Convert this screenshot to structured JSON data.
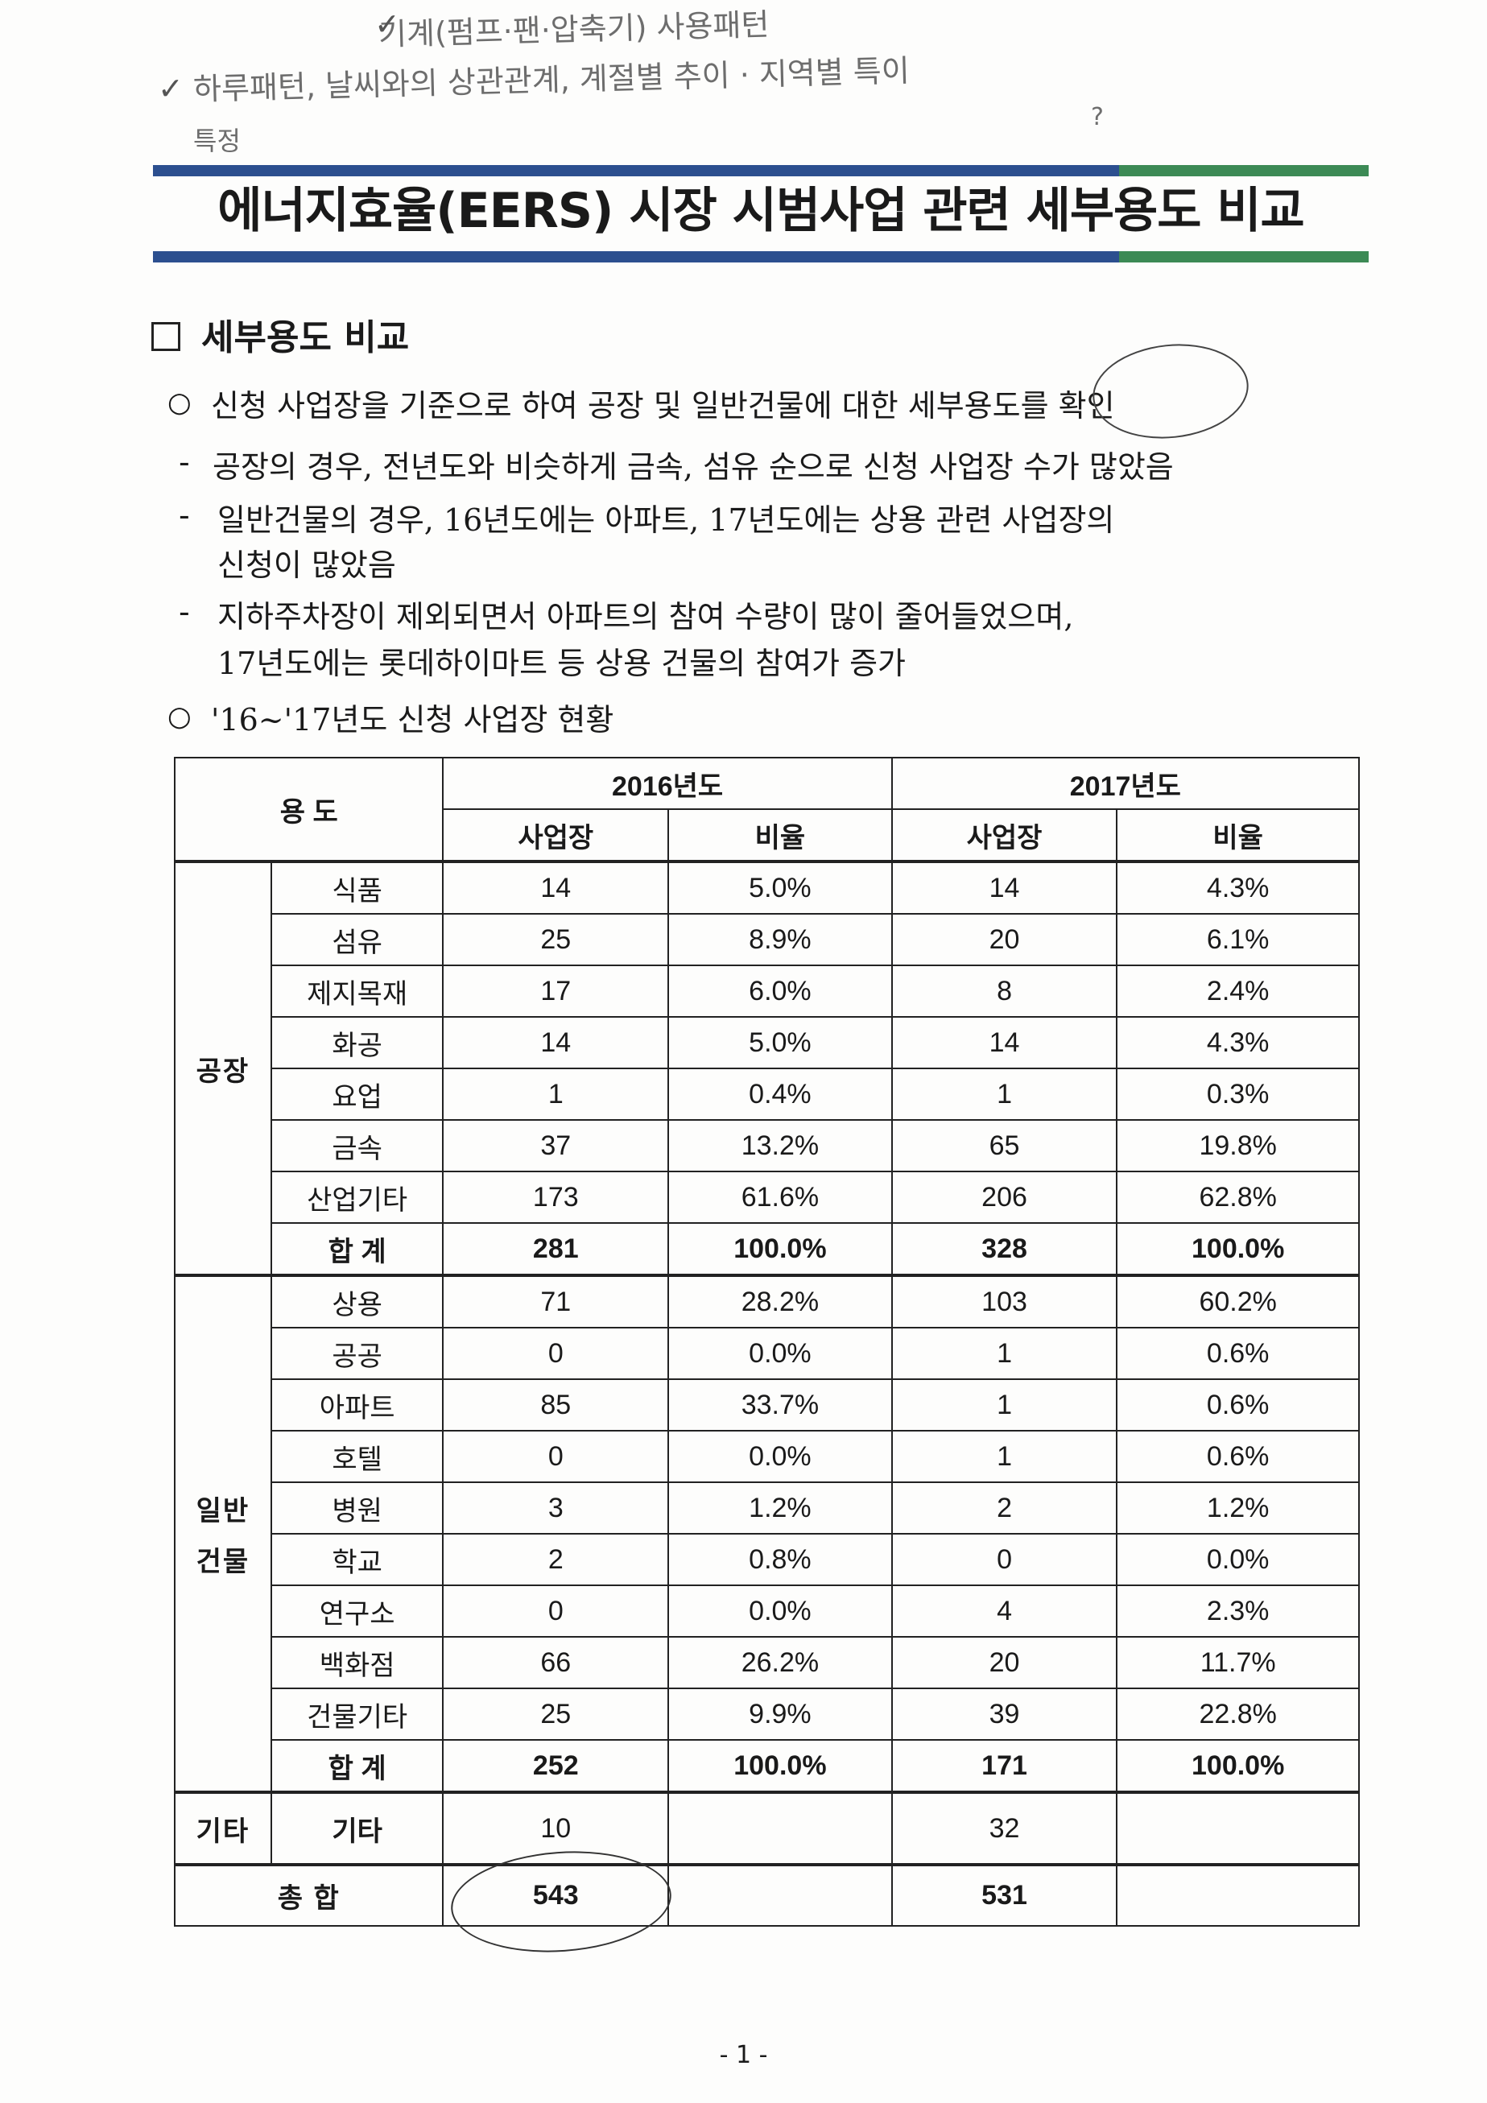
{
  "handwritten": {
    "line1": "기계(펌프·팬·압축기) 사용패턴",
    "line2": "하루패턴, 날씨와의 상관관계, 계절별 추이 · 지역별 특이",
    "line3": "특정",
    "question": "?",
    "check": "✓"
  },
  "title": "에너지효율(EERS) 시장 시범사업 관련 세부용도 비교",
  "section_heading": "세부용도 비교",
  "body": {
    "bullet1": "신청 사업장을 기준으로 하여 공장 및 일반건물에 대한 세부용도를 확인",
    "dash1": "공장의 경우, 전년도와 비슷하게 금속, 섬유 순으로 신청 사업장 수가 많았음",
    "dash2_a": "일반건물의 경우, 16년도에는 아파트, 17년도에는 상용 관련 사업장의",
    "dash2_b": "신청이 많았음",
    "dash3_a": "지하주차장이 제외되면서 아파트의 참여 수량이 많이 줄어들었으며,",
    "dash3_b": "17년도에는 롯데하이마트 등 상용 건물의 참여가 증가",
    "bullet2": "'16~'17년도 신청 사업장 현황",
    "bullet_mark": "○",
    "dash_mark": "-"
  },
  "table": {
    "use_header": "용 도",
    "year1": "2016년도",
    "year2": "2017년도",
    "count_header": "사업장",
    "ratio_header": "비율",
    "factory_label": "공장",
    "building_label_1": "일반",
    "building_label_2": "건물",
    "etc_group": "기타",
    "subtotal_label": "합 계",
    "grand_total_label": "총 합",
    "factory_rows": [
      {
        "name": "식품",
        "c16": "14",
        "r16": "5.0%",
        "c17": "14",
        "r17": "4.3%"
      },
      {
        "name": "섬유",
        "c16": "25",
        "r16": "8.9%",
        "c17": "20",
        "r17": "6.1%"
      },
      {
        "name": "제지목재",
        "c16": "17",
        "r16": "6.0%",
        "c17": "8",
        "r17": "2.4%"
      },
      {
        "name": "화공",
        "c16": "14",
        "r16": "5.0%",
        "c17": "14",
        "r17": "4.3%"
      },
      {
        "name": "요업",
        "c16": "1",
        "r16": "0.4%",
        "c17": "1",
        "r17": "0.3%"
      },
      {
        "name": "금속",
        "c16": "37",
        "r16": "13.2%",
        "c17": "65",
        "r17": "19.8%"
      },
      {
        "name": "산업기타",
        "c16": "173",
        "r16": "61.6%",
        "c17": "206",
        "r17": "62.8%"
      }
    ],
    "factory_total": {
      "c16": "281",
      "r16": "100.0%",
      "c17": "328",
      "r17": "100.0%"
    },
    "building_rows": [
      {
        "name": "상용",
        "c16": "71",
        "r16": "28.2%",
        "c17": "103",
        "r17": "60.2%"
      },
      {
        "name": "공공",
        "c16": "0",
        "r16": "0.0%",
        "c17": "1",
        "r17": "0.6%"
      },
      {
        "name": "아파트",
        "c16": "85",
        "r16": "33.7%",
        "c17": "1",
        "r17": "0.6%"
      },
      {
        "name": "호텔",
        "c16": "0",
        "r16": "0.0%",
        "c17": "1",
        "r17": "0.6%"
      },
      {
        "name": "병원",
        "c16": "3",
        "r16": "1.2%",
        "c17": "2",
        "r17": "1.2%"
      },
      {
        "name": "학교",
        "c16": "2",
        "r16": "0.8%",
        "c17": "0",
        "r17": "0.0%"
      },
      {
        "name": "연구소",
        "c16": "0",
        "r16": "0.0%",
        "c17": "4",
        "r17": "2.3%"
      },
      {
        "name": "백화점",
        "c16": "66",
        "r16": "26.2%",
        "c17": "20",
        "r17": "11.7%"
      },
      {
        "name": "건물기타",
        "c16": "25",
        "r16": "9.9%",
        "c17": "39",
        "r17": "22.8%"
      }
    ],
    "building_total": {
      "c16": "252",
      "r16": "100.0%",
      "c17": "171",
      "r17": "100.0%"
    },
    "etc_row": {
      "name": "기타",
      "c16": "10",
      "c17": "32"
    },
    "grand_total": {
      "c16": "543",
      "c17": "531"
    }
  },
  "page_number": "- 1 -"
}
